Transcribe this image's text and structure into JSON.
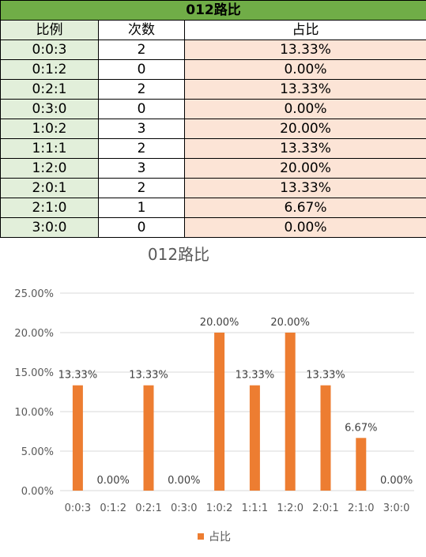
{
  "table": {
    "title": "012路比",
    "headers": [
      "比例",
      "次数",
      "占比"
    ],
    "rows": [
      {
        "ratio": "0:0:3",
        "count": "2",
        "pct": "13.33%"
      },
      {
        "ratio": "0:1:2",
        "count": "0",
        "pct": "0.00%"
      },
      {
        "ratio": "0:2:1",
        "count": "2",
        "pct": "13.33%"
      },
      {
        "ratio": "0:3:0",
        "count": "0",
        "pct": "0.00%"
      },
      {
        "ratio": "1:0:2",
        "count": "3",
        "pct": "20.00%"
      },
      {
        "ratio": "1:1:1",
        "count": "2",
        "pct": "13.33%"
      },
      {
        "ratio": "1:2:0",
        "count": "3",
        "pct": "20.00%"
      },
      {
        "ratio": "2:0:1",
        "count": "2",
        "pct": "13.33%"
      },
      {
        "ratio": "2:1:0",
        "count": "1",
        "pct": "6.67%"
      },
      {
        "ratio": "3:0:0",
        "count": "0",
        "pct": "0.00%"
      }
    ]
  },
  "chart_data": {
    "type": "bar",
    "title": "012路比",
    "categories": [
      "0:0:3",
      "0:1:2",
      "0:2:1",
      "0:3:0",
      "1:0:2",
      "1:1:1",
      "1:2:0",
      "2:0:1",
      "2:1:0",
      "3:0:0"
    ],
    "series": [
      {
        "name": "占比",
        "values": [
          13.33,
          0.0,
          13.33,
          0.0,
          20.0,
          13.33,
          20.0,
          13.33,
          6.67,
          0.0
        ],
        "color": "#ed7d31"
      }
    ],
    "data_labels": [
      "13.33%",
      "0.00%",
      "13.33%",
      "0.00%",
      "20.00%",
      "13.33%",
      "20.00%",
      "13.33%",
      "6.67%",
      "0.00%"
    ],
    "y_ticks": [
      "0.00%",
      "5.00%",
      "10.00%",
      "15.00%",
      "20.00%",
      "25.00%"
    ],
    "ylim": [
      0,
      25
    ],
    "grid": true,
    "legend": "bottom",
    "gridline_color": "#d9d9d9",
    "label_color": "#595959",
    "title_color": "#595959"
  }
}
